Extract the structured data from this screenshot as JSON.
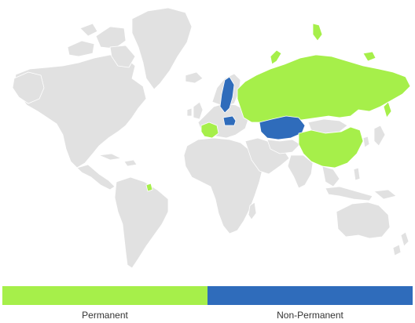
{
  "map": {
    "categories": {
      "permanent": {
        "color": "#a6ef4a"
      },
      "non_permanent": {
        "color": "#2f6cbb"
      },
      "none": {
        "color": "#e1e1e1"
      }
    },
    "highlighted_regions": [
      {
        "region": "russia",
        "category": "permanent"
      },
      {
        "region": "china",
        "category": "permanent"
      },
      {
        "region": "france",
        "category": "permanent"
      },
      {
        "region": "french-guiana",
        "category": "permanent"
      },
      {
        "region": "novaya-zemlya",
        "category": "permanent"
      },
      {
        "region": "sweden",
        "category": "non_permanent"
      },
      {
        "region": "poland",
        "category": "non_permanent"
      },
      {
        "region": "kazakhstan",
        "category": "non_permanent"
      }
    ]
  },
  "legend": {
    "items": [
      {
        "label": "Permanent",
        "color": "#a6ef4a"
      },
      {
        "label": "Non-Permanent",
        "color": "#2f6cbb"
      }
    ]
  }
}
